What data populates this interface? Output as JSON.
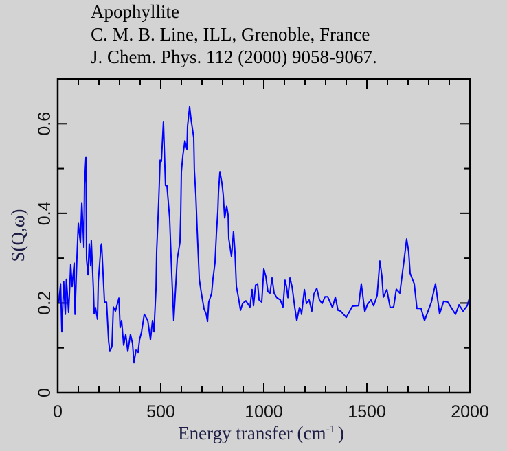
{
  "header": {
    "line1": "Apophyllite",
    "line2": "C. M. B. Line, ILL, Grenoble, France",
    "line3": "J. Chem. Phys. 112 (2000) 9058-9067."
  },
  "chart_data": {
    "type": "line",
    "title": "Apophyllite",
    "xlabel": "Energy transfer (cm",
    "xlabel_sup": "-1",
    "xlabel_close": ")",
    "ylabel": "S(Q,ω)",
    "xlim": [
      0,
      2000
    ],
    "ylim": [
      0,
      0.7
    ],
    "xticks": [
      "0",
      "500",
      "1000",
      "1500",
      "2000"
    ],
    "xtick_values": [
      0,
      500,
      1000,
      1500,
      2000
    ],
    "yticks": [
      "0",
      "0.2",
      "0.4",
      "0.6"
    ],
    "ytick_values": [
      0,
      0.2,
      0.4,
      0.6
    ],
    "grid": false,
    "line_color": "#0000ff",
    "series": [
      {
        "name": "Apophyllite",
        "x": [
          5,
          14,
          20,
          29,
          37,
          42,
          53,
          63,
          70,
          80,
          84,
          93,
          100,
          110,
          117,
          127,
          130,
          137,
          140,
          147,
          153,
          160,
          163,
          173,
          177,
          183,
          193,
          197,
          210,
          213,
          227,
          237,
          247,
          253,
          263,
          270,
          280,
          297,
          303,
          310,
          320,
          330,
          340,
          353,
          363,
          370,
          380,
          390,
          397,
          407,
          420,
          437,
          450,
          460,
          467,
          477,
          480,
          490,
          497,
          503,
          513,
          523,
          530,
          543,
          553,
          563,
          570,
          580,
          593,
          597,
          600,
          607,
          617,
          627,
          630,
          640,
          647,
          660,
          663,
          670,
          677,
          687,
          697,
          710,
          720,
          727,
          733,
          747,
          753,
          763,
          770,
          777,
          780,
          787,
          797,
          803,
          810,
          820,
          827,
          830,
          843,
          847,
          853,
          860,
          867,
          877,
          887,
          897,
          913,
          933,
          943,
          950,
          960,
          970,
          977,
          990,
          1000,
          1010,
          1020,
          1030,
          1040,
          1050,
          1063,
          1080,
          1093,
          1103,
          1110,
          1117,
          1127,
          1137,
          1150,
          1160,
          1173,
          1180,
          1183,
          1197,
          1207,
          1220,
          1233,
          1243,
          1257,
          1270,
          1283,
          1297,
          1310,
          1333,
          1347,
          1360,
          1373,
          1400,
          1430,
          1460,
          1473,
          1490,
          1503,
          1520,
          1533,
          1550,
          1563,
          1573,
          1580,
          1597,
          1613,
          1630,
          1643,
          1660,
          1680,
          1693,
          1703,
          1710,
          1730,
          1743,
          1763,
          1780,
          1813,
          1833,
          1853,
          1873,
          1893,
          1930,
          1947,
          1967,
          1987,
          1997,
          2000
        ],
        "y": [
          0.2,
          0.243,
          0.136,
          0.248,
          0.175,
          0.253,
          0.179,
          0.286,
          0.237,
          0.289,
          0.175,
          0.298,
          0.378,
          0.335,
          0.424,
          0.324,
          0.465,
          0.526,
          0.298,
          0.263,
          0.332,
          0.283,
          0.34,
          0.233,
          0.176,
          0.19,
          0.164,
          0.248,
          0.328,
          0.332,
          0.202,
          0.202,
          0.115,
          0.092,
          0.103,
          0.191,
          0.182,
          0.211,
          0.145,
          0.161,
          0.106,
          0.13,
          0.092,
          0.13,
          0.11,
          0.067,
          0.095,
          0.09,
          0.118,
          0.136,
          0.175,
          0.161,
          0.118,
          0.161,
          0.136,
          0.233,
          0.314,
          0.427,
          0.519,
          0.516,
          0.605,
          0.462,
          0.462,
          0.39,
          0.268,
          0.161,
          0.217,
          0.298,
          0.335,
          0.401,
          0.493,
          0.528,
          0.562,
          0.543,
          0.595,
          0.638,
          0.61,
          0.569,
          0.497,
          0.442,
          0.36,
          0.253,
          0.222,
          0.187,
          0.176,
          0.159,
          0.202,
          0.222,
          0.253,
          0.289,
          0.355,
          0.406,
          0.447,
          0.493,
          0.467,
          0.442,
          0.39,
          0.416,
          0.396,
          0.344,
          0.304,
          0.324,
          0.36,
          0.314,
          0.237,
          0.212,
          0.184,
          0.199,
          0.205,
          0.191,
          0.23,
          0.194,
          0.24,
          0.243,
          0.207,
          0.202,
          0.276,
          0.259,
          0.225,
          0.222,
          0.256,
          0.222,
          0.212,
          0.207,
          0.191,
          0.251,
          0.237,
          0.212,
          0.256,
          0.237,
          0.191,
          0.161,
          0.19,
          0.184,
          0.175,
          0.23,
          0.199,
          0.207,
          0.182,
          0.22,
          0.233,
          0.207,
          0.199,
          0.214,
          0.214,
          0.19,
          0.213,
          0.184,
          0.182,
          0.168,
          0.193,
          0.194,
          0.243,
          0.181,
          0.197,
          0.207,
          0.194,
          0.217,
          0.294,
          0.26,
          0.213,
          0.23,
          0.19,
          0.191,
          0.231,
          0.222,
          0.294,
          0.343,
          0.314,
          0.266,
          0.243,
          0.188,
          0.188,
          0.161,
          0.202,
          0.243,
          0.176,
          0.204,
          0.202,
          0.175,
          0.196,
          0.182,
          0.194,
          0.21,
          0.21
        ]
      }
    ]
  }
}
